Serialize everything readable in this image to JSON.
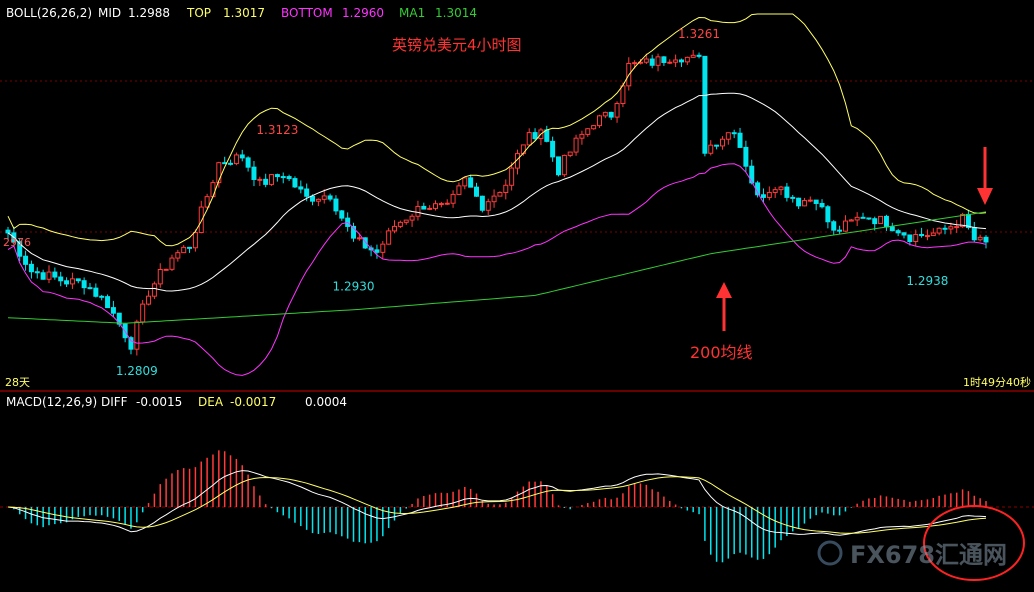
{
  "colors": {
    "background": "#000000",
    "up_candle": "#ff3b3b",
    "down_candle": "#00e5ee",
    "mid_line": "#ffffff",
    "top_line": "#ffff66",
    "bottom_line": "#ff33ff",
    "ma_line": "#33cc33",
    "dif_line": "#ffffff",
    "dea_line": "#ffff66",
    "annotation_red": "#ff3333",
    "price_label": "#33dddd",
    "high_label": "#ff4444"
  },
  "legend": {
    "boll": {
      "name": "BOLL(26,26,2)",
      "mid_label": "MID",
      "mid_value": "1.2988",
      "top_label": "TOP",
      "top_value": "1.3017",
      "bottom_label": "BOTTOM",
      "bottom_value": "1.2960",
      "ma_label": "MA1",
      "ma_value": "1.3014"
    },
    "macd": {
      "name": "MACD(12,26,9)",
      "diff_label": "DIFF",
      "diff_value": "-0.0015",
      "dea_label": "DEA",
      "dea_value": "-0.0017",
      "macd_value": "0.0004"
    }
  },
  "annotations": {
    "chart_title": "英镑兑美元4小时图",
    "ma200_label": "200均线",
    "left_price": "2976",
    "left_bottom": "28天",
    "right_bottom": "1时49分40秒",
    "watermark": "FX678汇通网"
  },
  "chart_data": {
    "type": "candlestick",
    "title": "英镑兑美元4小时图",
    "ylim": [
      1.279,
      1.329
    ],
    "price_labels": [
      {
        "text": "1.3261",
        "x": 118,
        "y": 1.3261,
        "kind": "high"
      },
      {
        "text": "1.3123",
        "x": 46,
        "y": 1.3123,
        "kind": "high"
      },
      {
        "text": "1.2930",
        "x": 59,
        "y": 1.293,
        "kind": "low"
      },
      {
        "text": "1.2809",
        "x": 22,
        "y": 1.2809,
        "kind": "low"
      },
      {
        "text": "1.2938",
        "x": 157,
        "y": 1.2938,
        "kind": "low"
      }
    ],
    "anchors": [
      [
        0,
        1.299
      ],
      [
        4,
        1.2935
      ],
      [
        10,
        1.292
      ],
      [
        13,
        1.2918
      ],
      [
        17,
        1.2888
      ],
      [
        21,
        1.283
      ],
      [
        24,
        1.2905
      ],
      [
        28,
        1.2955
      ],
      [
        31,
        1.2972
      ],
      [
        36,
        1.309
      ],
      [
        40,
        1.31
      ],
      [
        43,
        1.306
      ],
      [
        47,
        1.3075
      ],
      [
        51,
        1.304
      ],
      [
        55,
        1.3045
      ],
      [
        59,
        1.298
      ],
      [
        63,
        1.2962
      ],
      [
        66,
        1.3
      ],
      [
        71,
        1.303
      ],
      [
        75,
        1.3025
      ],
      [
        78,
        1.3065
      ],
      [
        81,
        1.303
      ],
      [
        85,
        1.306
      ],
      [
        88,
        1.312
      ],
      [
        91,
        1.314
      ],
      [
        94,
        1.308
      ],
      [
        97,
        1.312
      ],
      [
        100,
        1.315
      ],
      [
        103,
        1.316
      ],
      [
        106,
        1.323
      ],
      [
        110,
        1.3235
      ],
      [
        114,
        1.3245
      ],
      [
        118,
        1.3238
      ],
      [
        119,
        1.311
      ],
      [
        124,
        1.314
      ],
      [
        126,
        1.309
      ],
      [
        128,
        1.304
      ],
      [
        131,
        1.306
      ],
      [
        135,
        1.3035
      ],
      [
        138,
        1.304
      ],
      [
        141,
        1.299
      ],
      [
        146,
        1.3015
      ],
      [
        150,
        1.3005
      ],
      [
        154,
        1.2985
      ],
      [
        159,
        1.299
      ],
      [
        163,
        1.301
      ],
      [
        165,
        1.298
      ],
      [
        167,
        1.2974
      ]
    ],
    "ma200": [
      [
        0,
        1.2868
      ],
      [
        20,
        1.286
      ],
      [
        60,
        1.288
      ],
      [
        90,
        1.29
      ],
      [
        120,
        1.296
      ],
      [
        167,
        1.302
      ]
    ],
    "macd_hist_range": [
      -0.006,
      0.0055
    ]
  }
}
